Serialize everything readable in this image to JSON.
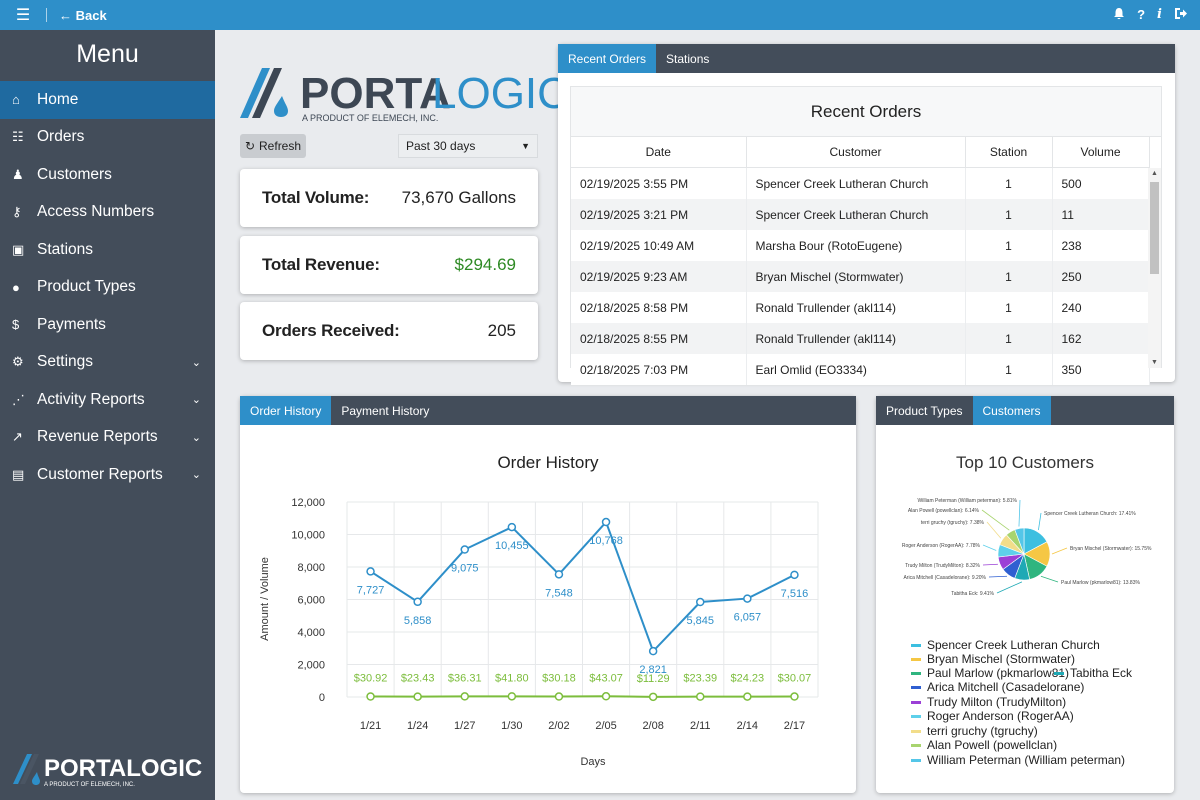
{
  "topbar": {
    "menu_glyph": "☰",
    "back_label": "Back",
    "icons": [
      "bell-icon",
      "help-icon",
      "info-icon",
      "logout-icon"
    ]
  },
  "sidebar": {
    "title": "Menu",
    "items": [
      {
        "label": "Home",
        "icon": "home-icon",
        "active": true,
        "expandable": false
      },
      {
        "label": "Orders",
        "icon": "clipboard-icon",
        "active": false,
        "expandable": false
      },
      {
        "label": "Customers",
        "icon": "person-icon",
        "active": false,
        "expandable": false
      },
      {
        "label": "Access Numbers",
        "icon": "key-icon",
        "active": false,
        "expandable": false
      },
      {
        "label": "Stations",
        "icon": "gas-pump-icon",
        "active": false,
        "expandable": false
      },
      {
        "label": "Product Types",
        "icon": "droplet-icon",
        "active": false,
        "expandable": false
      },
      {
        "label": "Payments",
        "icon": "dollar-icon",
        "active": false,
        "expandable": false
      },
      {
        "label": "Settings",
        "icon": "gear-icon",
        "active": false,
        "expandable": true
      },
      {
        "label": "Activity Reports",
        "icon": "scatter-chart-icon",
        "active": false,
        "expandable": true
      },
      {
        "label": "Revenue Reports",
        "icon": "line-chart-icon",
        "active": false,
        "expandable": true
      },
      {
        "label": "Customer Reports",
        "icon": "id-card-icon",
        "active": false,
        "expandable": true
      }
    ],
    "logo_text": "PORTALOGIC",
    "logo_sub": "A PRODUCT OF ELEMECH, INC."
  },
  "brand": {
    "logo_text_a": "PORTA",
    "logo_text_b": "LOGIC",
    "logo_sub": "A PRODUCT OF ELEMECH, INC.",
    "colors": {
      "dark": "#3d4754",
      "accent": "#2e8fc9"
    }
  },
  "controls": {
    "refresh_label": "Refresh",
    "range_value": "Past 30 days"
  },
  "stats": [
    {
      "label": "Total Volume:",
      "value": "73,670 Gallons",
      "green": false
    },
    {
      "label": "Total Revenue:",
      "value": "$294.69",
      "green": true
    },
    {
      "label": "Orders Received:",
      "value": "205",
      "green": false
    }
  ],
  "recent": {
    "tabs": [
      {
        "label": "Recent Orders",
        "active": true
      },
      {
        "label": "Stations",
        "active": false
      }
    ],
    "title": "Recent Orders",
    "columns": [
      "Date",
      "Customer",
      "Station",
      "Volume"
    ],
    "rows": [
      [
        "02/19/2025 3:55 PM",
        "Spencer Creek Lutheran Church",
        "1",
        "500"
      ],
      [
        "02/19/2025 3:21 PM",
        "Spencer Creek Lutheran Church",
        "1",
        "11"
      ],
      [
        "02/19/2025 10:49 AM",
        "Marsha Bour (RotoEugene)",
        "1",
        "238"
      ],
      [
        "02/19/2025 9:23 AM",
        "Bryan Mischel (Stormwater)",
        "1",
        "250"
      ],
      [
        "02/18/2025 8:58 PM",
        "Ronald Trullender (akl114)",
        "1",
        "240"
      ],
      [
        "02/18/2025 8:55 PM",
        "Ronald Trullender (akl114)",
        "1",
        "162"
      ],
      [
        "02/18/2025 7:03 PM",
        "Earl Omlid (EO3334)",
        "1",
        "350"
      ]
    ]
  },
  "history": {
    "tabs": [
      {
        "label": "Order History",
        "active": true
      },
      {
        "label": "Payment History",
        "active": false
      }
    ]
  },
  "customers": {
    "tabs": [
      {
        "label": "Product Types",
        "active": false
      },
      {
        "label": "Customers",
        "active": true
      }
    ]
  },
  "chart_data": [
    {
      "type": "line",
      "title": "Order History",
      "xlabel": "Days",
      "ylabel": "Amount / Volume",
      "categories": [
        "1/21",
        "1/24",
        "1/27",
        "1/30",
        "2/02",
        "2/05",
        "2/08",
        "2/11",
        "2/14",
        "2/17"
      ],
      "ylim": [
        0,
        12000
      ],
      "yticks": [
        "0",
        "2,000",
        "4,000",
        "6,000",
        "8,000",
        "10,000",
        "12,000"
      ],
      "grid": true,
      "series": [
        {
          "values": [
            7727,
            5858,
            9075,
            10455,
            7548,
            10768,
            2821,
            5845,
            6057,
            7516
          ],
          "labels": [
            "7,727",
            "5,858",
            "9,075",
            "10,455",
            "7,548",
            "10,768",
            "2,821",
            "5,845",
            "6,057",
            "7,516"
          ],
          "color": "#2e8fc9"
        },
        {
          "values": [
            30.92,
            23.43,
            36.31,
            41.8,
            30.18,
            43.07,
            11.29,
            23.39,
            24.23,
            30.07
          ],
          "labels": [
            "$30.92",
            "$23.43",
            "$36.31",
            "$41.80",
            "$30.18",
            "$43.07",
            "$11.29",
            "$23.39",
            "$24.23",
            "$30.07"
          ],
          "color": "#7cbd3c"
        }
      ]
    },
    {
      "type": "pie",
      "title": "Top 10 Customers",
      "slices": [
        {
          "name": "Spencer Creek Lutheran Church",
          "percent": 17.41,
          "label": "Spencer Creek Lutheran Church: 17.41%",
          "color": "#3cbfe0"
        },
        {
          "name": "Bryan Mischel (Stormwater)",
          "percent": 15.75,
          "label": "Bryan Mischel (Stormwater): 15.75%",
          "color": "#f5c744"
        },
        {
          "name": "Paul Marlow (pkmarlow81)",
          "percent": 13.83,
          "label": "Paul Marlow (pkmarlow81): 13.83%",
          "color": "#2fb57f"
        },
        {
          "name": "Tabitha Eck",
          "percent": 9.41,
          "label": "Tabitha Eck: 9.41%",
          "color": "#1fa9b5"
        },
        {
          "name": "Arica Mitchell (Casadelorane)",
          "percent": 9.2,
          "label": "Arica Mitchell (Casadelorane): 9.20%",
          "color": "#2f5fd1"
        },
        {
          "name": "Trudy Milton (TrudyMilton)",
          "percent": 8.32,
          "label": "Trudy Milton (TrudyMilton): 8.32%",
          "color": "#9b3fd6"
        },
        {
          "name": "Roger Anderson (RogerAA)",
          "percent": 7.78,
          "label": "Roger Anderson (RogerAA): 7.78%",
          "color": "#5ed0ea"
        },
        {
          "name": "terri gruchy (tgruchy)",
          "percent": 7.38,
          "label": "terri gruchy (tgruchy): 7.38%",
          "color": "#f2dd8a"
        },
        {
          "name": "Alan Powell (powellclan)",
          "percent": 6.14,
          "label": "Alan Powell (powellclan): 6.14%",
          "color": "#a8d46f"
        },
        {
          "name": "William Peterman (William peterman)",
          "percent": 5.81,
          "label": "William Peterman (William peterman): 5.81%",
          "color": "#54c6e8"
        }
      ]
    }
  ]
}
